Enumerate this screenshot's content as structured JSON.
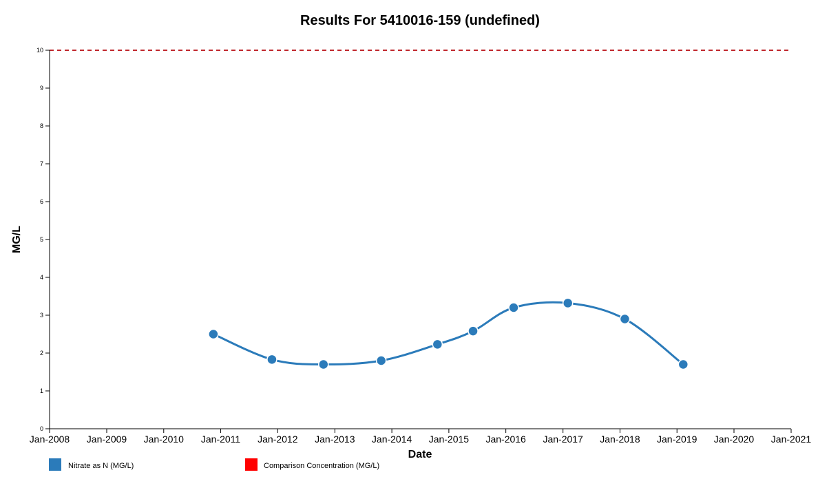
{
  "chart_data": {
    "type": "line",
    "title": "Results For 5410016-159 (undefined)",
    "xlabel": "Date",
    "ylabel": "MG/L",
    "xlim": [
      "2008-01-01",
      "2021-01-01"
    ],
    "ylim": [
      0,
      10
    ],
    "x_ticks": [
      "Jan-2008",
      "Jan-2009",
      "Jan-2010",
      "Jan-2011",
      "Jan-2012",
      "Jan-2013",
      "Jan-2014",
      "Jan-2015",
      "Jan-2016",
      "Jan-2017",
      "Jan-2018",
      "Jan-2019",
      "Jan-2020",
      "Jan-2021"
    ],
    "y_ticks": [
      "0",
      "1",
      "2",
      "3",
      "4",
      "5",
      "6",
      "7",
      "8",
      "9",
      "10"
    ],
    "grid": false,
    "legend_position": "bottom-left",
    "series": [
      {
        "name": "Nitrate as N (MG/L)",
        "color": "#2b7bba",
        "x": [
          "2010-11-15",
          "2011-11-25",
          "2012-10-20",
          "2013-10-25",
          "2014-10-20",
          "2015-06-05",
          "2016-02-20",
          "2017-02-01",
          "2018-02-01",
          "2019-02-10"
        ],
        "y": [
          2.5,
          1.83,
          1.7,
          1.8,
          2.23,
          2.58,
          3.2,
          3.32,
          2.9,
          1.7
        ]
      }
    ],
    "reference_lines": [
      {
        "name": "Comparison Concentration (MG/L)",
        "value": 10,
        "color": "#ff0000",
        "line_color": "#c0282d",
        "style": "dashed"
      }
    ]
  }
}
